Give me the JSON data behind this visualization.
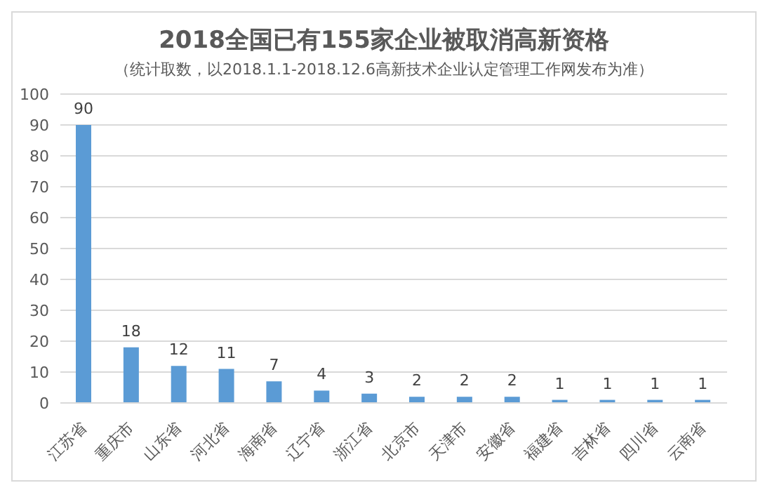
{
  "chart_data": {
    "type": "bar",
    "title": "2018全国已有155家企业被取消高新资格",
    "subtitle": "（统计取数，以2018.1.1-2018.12.6高新技术企业认定管理工作网发布为准）",
    "categories": [
      "江苏省",
      "重庆市",
      "山东省",
      "河北省",
      "海南省",
      "辽宁省",
      "浙江省",
      "北京市",
      "天津市",
      "安徽省",
      "福建省",
      "吉林省",
      "四川省",
      "云南省"
    ],
    "values": [
      90,
      18,
      12,
      11,
      7,
      4,
      3,
      2,
      2,
      2,
      1,
      1,
      1,
      1
    ],
    "color": "#5b9bd5",
    "ylim": [
      0,
      100
    ],
    "yticks": [
      0,
      10,
      20,
      30,
      40,
      50,
      60,
      70,
      80,
      90,
      100
    ],
    "grid": "y",
    "data_labels": true
  }
}
